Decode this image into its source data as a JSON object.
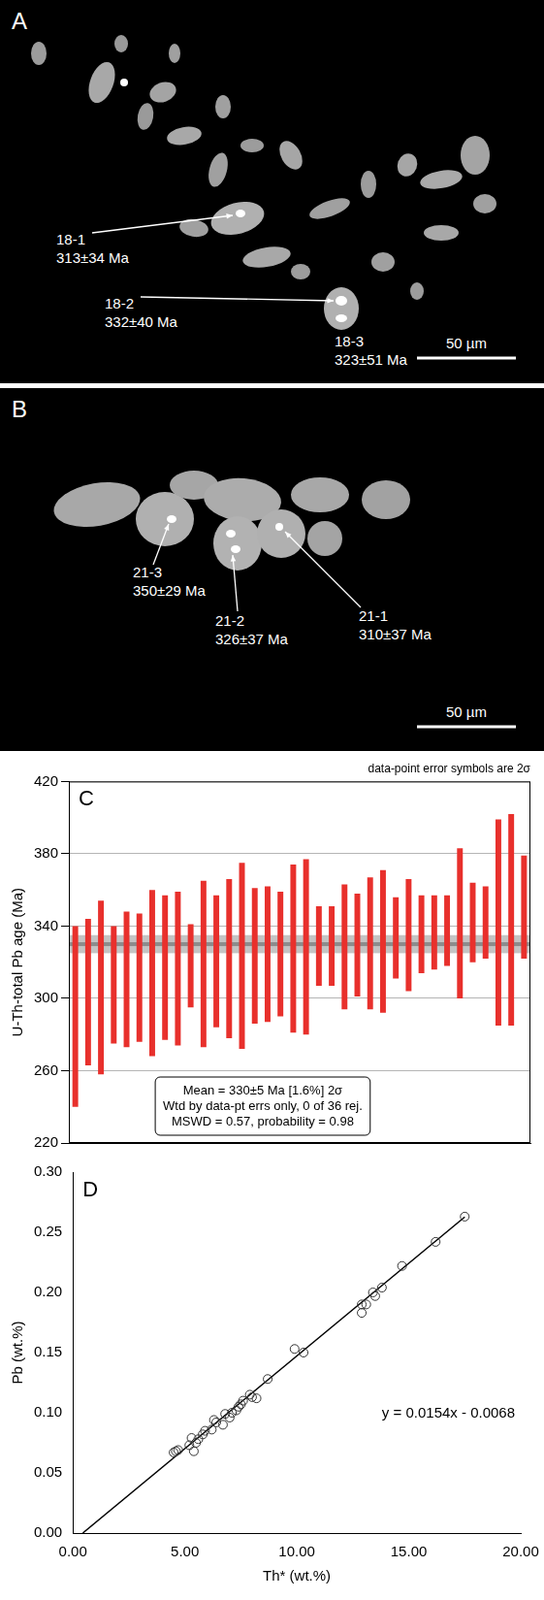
{
  "image_panels": [
    {
      "panel": "A",
      "spots": [
        {
          "label": "18-1",
          "age": "313±34 Ma"
        },
        {
          "label": "18-2",
          "age": "332±40 Ma"
        },
        {
          "label": "18-3",
          "age": "323±51 Ma"
        }
      ],
      "scale_bar": "50 µm"
    },
    {
      "panel": "B",
      "spots": [
        {
          "label": "21-3",
          "age": "350±29 Ma"
        },
        {
          "label": "21-2",
          "age": "326±37 Ma"
        },
        {
          "label": "21-1",
          "age": "310±37 Ma"
        }
      ],
      "scale_bar": "50 µm"
    }
  ],
  "chart_data": [
    {
      "type": "error_bar",
      "panel": "C",
      "subtitle": "data-point error symbols are 2σ",
      "y_label": "U-Th-total Pb age (Ma)",
      "categories": [
        null,
        null,
        null,
        null,
        null,
        null,
        null,
        null,
        null,
        null,
        null,
        null,
        null,
        null,
        null,
        null,
        null,
        null,
        null,
        null,
        null,
        null,
        null,
        null,
        null,
        null,
        null,
        null,
        null,
        null,
        null,
        null,
        null,
        null,
        null,
        null
      ],
      "values": [
        290,
        303.5,
        306,
        307.5,
        310.5,
        311.5,
        314,
        317,
        316.5,
        318,
        319,
        320.5,
        322,
        323.5,
        323.5,
        324.5,
        324.5,
        327.5,
        328.5,
        329,
        329,
        328.5,
        329.5,
        330.5,
        331.5,
        333.5,
        335,
        335.5,
        336.5,
        337.5,
        341.5,
        342,
        342,
        342,
        343.5,
        350.5
      ],
      "errors": [
        50,
        40.5,
        48,
        32.5,
        37.5,
        35.5,
        46,
        40,
        42.5,
        23,
        46,
        36.5,
        44,
        51.5,
        37.5,
        37.5,
        34.5,
        46.5,
        48.5,
        22,
        22,
        34.5,
        28.5,
        36.5,
        39.5,
        22.5,
        31,
        21.5,
        20.5,
        19.5,
        41.5,
        22,
        20,
        57,
        58.5,
        28.5
      ],
      "color": "#e8302c",
      "mean": 330,
      "mean_error": 5,
      "annotations": [
        "Mean = 330±5 Ma [1.6%] 2σ",
        "Wtd by data-pt errs only, 0 of 36 rej.",
        "MSWD = 0.57, probability = 0.98"
      ],
      "ylim": [
        220,
        420
      ],
      "yticks": [
        220,
        260,
        300,
        340,
        380,
        420
      ],
      "grid": true,
      "tick_labels": "y"
    },
    {
      "type": "scatter",
      "panel": "D",
      "x_label": "Th* (wt.%)",
      "y_label": "Pb (wt.%)",
      "x": [
        4.5,
        4.6,
        4.7,
        5.2,
        5.3,
        5.4,
        5.5,
        5.6,
        5.8,
        5.9,
        6.2,
        6.3,
        6.4,
        6.7,
        6.8,
        7.0,
        7.1,
        7.3,
        7.4,
        7.5,
        7.6,
        7.9,
        8.0,
        8.2,
        8.7,
        9.9,
        10.3,
        12.9,
        12.9,
        13.1,
        13.4,
        13.5,
        13.8,
        14.7,
        16.2,
        17.5
      ],
      "y": [
        0.067,
        0.068,
        0.069,
        0.073,
        0.079,
        0.068,
        0.075,
        0.078,
        0.082,
        0.085,
        0.086,
        0.094,
        0.092,
        0.09,
        0.099,
        0.096,
        0.1,
        0.102,
        0.105,
        0.107,
        0.11,
        0.115,
        0.113,
        0.112,
        0.128,
        0.153,
        0.15,
        0.183,
        0.19,
        0.19,
        0.2,
        0.197,
        0.204,
        0.222,
        0.242,
        0.263
      ],
      "color": "#333333",
      "marker": "open_circle",
      "fit": {
        "label": "y = 0.0154x - 0.0068",
        "x": [
          0.44,
          17.5
        ],
        "y": [
          0.0,
          0.2627
        ],
        "color": "#000000",
        "line_style": "solid"
      },
      "xlim": [
        0,
        20
      ],
      "xticks": [
        {
          "value": 0,
          "label": "0.00"
        },
        {
          "value": 5,
          "label": "5.00"
        },
        {
          "value": 10,
          "label": "10.00"
        },
        {
          "value": 15,
          "label": "15.00"
        },
        {
          "value": 20,
          "label": "20.00"
        }
      ],
      "ylim": [
        0,
        0.3
      ],
      "yticks": [
        {
          "value": 0,
          "label": "0.00"
        },
        {
          "value": 0.05,
          "label": "0.05"
        },
        {
          "value": 0.1,
          "label": "0.10"
        },
        {
          "value": 0.15,
          "label": "0.15"
        },
        {
          "value": 0.2,
          "label": "0.20"
        },
        {
          "value": 0.25,
          "label": "0.25"
        },
        {
          "value": 0.3,
          "label": "0.30"
        }
      ],
      "grid": false
    }
  ]
}
